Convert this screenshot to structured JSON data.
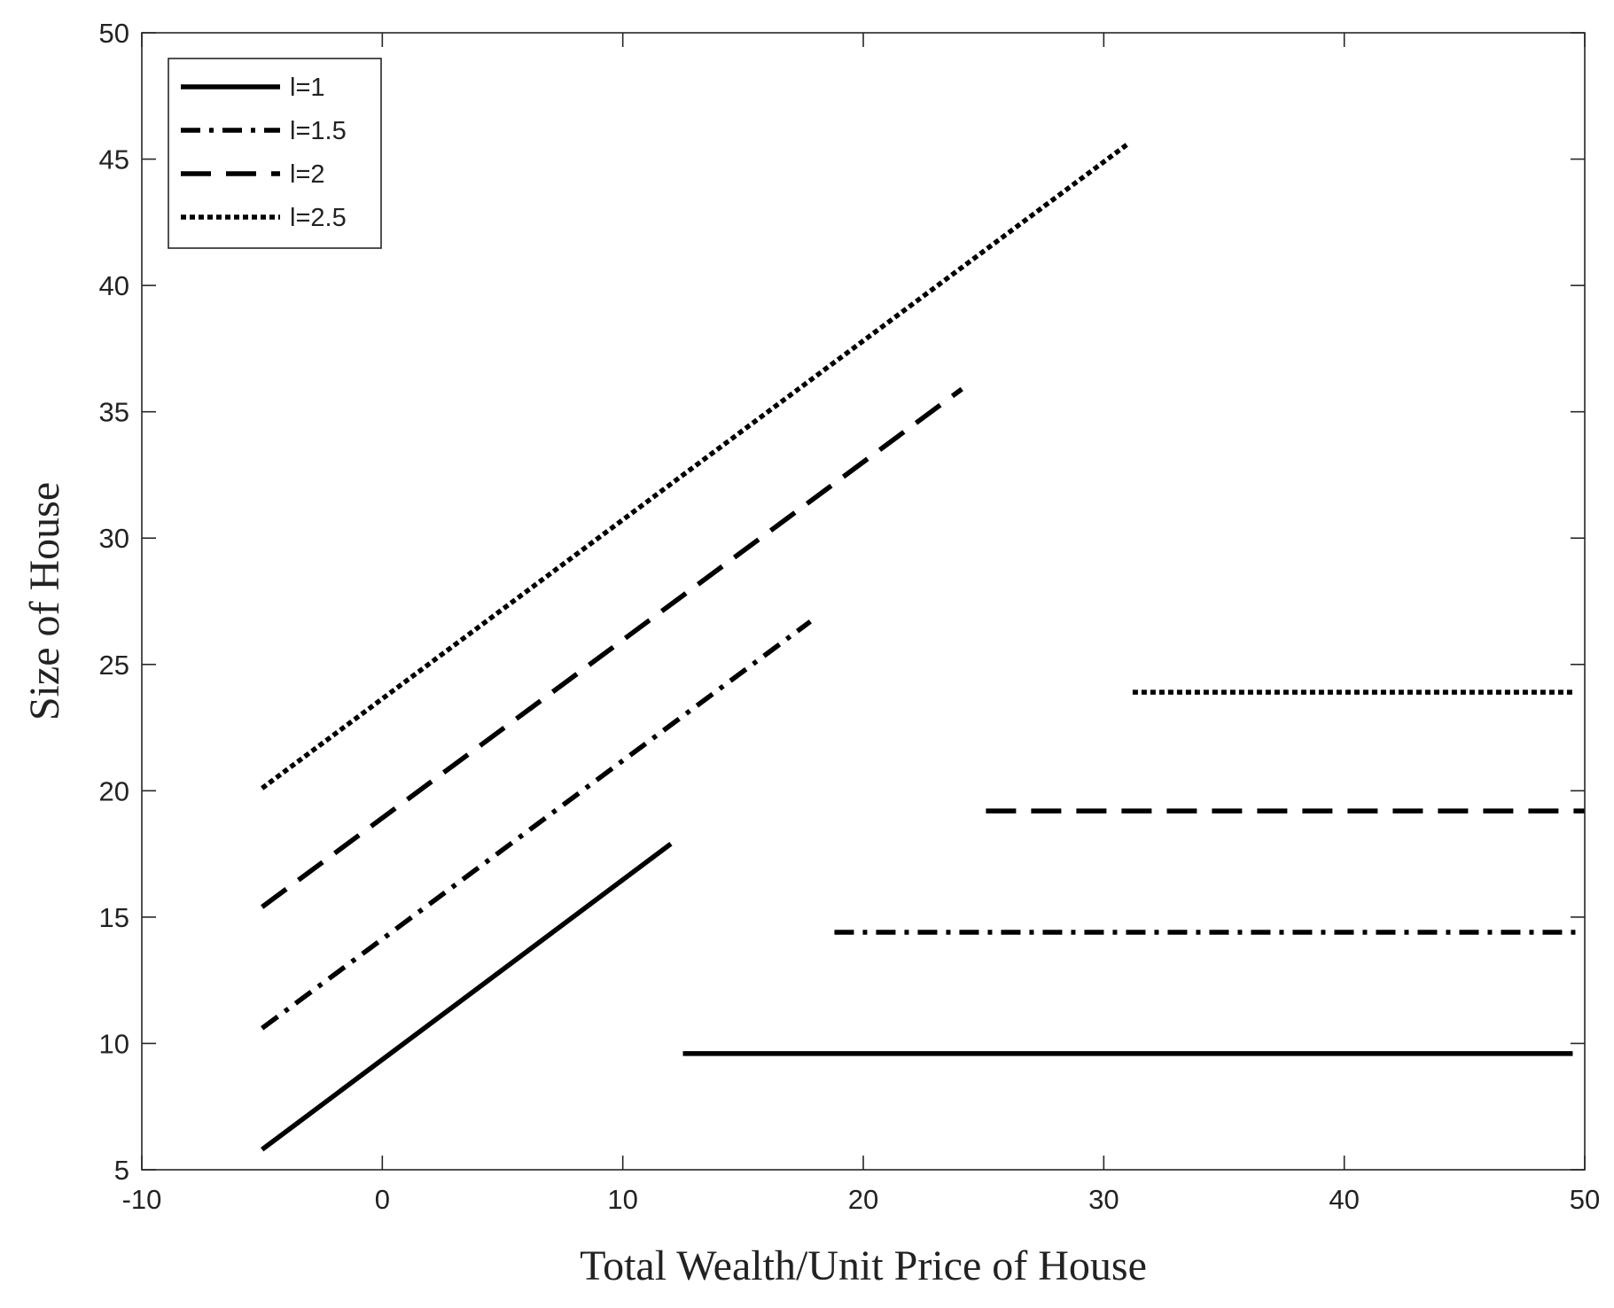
{
  "chart_data": {
    "type": "line",
    "title": "",
    "xlabel": "Total Wealth/Unit Price of House",
    "ylabel": "Size of House",
    "xlim": [
      -10,
      50
    ],
    "ylim": [
      5,
      50
    ],
    "xticks": [
      -10,
      0,
      10,
      20,
      30,
      40,
      50
    ],
    "yticks": [
      5,
      10,
      15,
      20,
      25,
      30,
      35,
      40,
      45,
      50
    ],
    "grid": false,
    "legend_position": "top-left",
    "series": [
      {
        "name": "l=1",
        "style": "solid",
        "segments": [
          [
            [
              -5,
              5.8
            ],
            [
              12,
              17.9
            ]
          ],
          [
            [
              12.5,
              9.6
            ],
            [
              49.5,
              9.6
            ]
          ]
        ]
      },
      {
        "name": "l=1.5",
        "style": "dashdot",
        "segments": [
          [
            [
              -5,
              10.6
            ],
            [
              17.8,
              26.7
            ]
          ],
          [
            [
              18.8,
              14.4
            ],
            [
              49.8,
              14.4
            ]
          ]
        ]
      },
      {
        "name": "l=2",
        "style": "dashed",
        "segments": [
          [
            [
              -5,
              15.4
            ],
            [
              24.1,
              35.9
            ]
          ],
          [
            [
              25.1,
              19.2
            ],
            [
              50,
              19.2
            ]
          ]
        ]
      },
      {
        "name": "l=2.5",
        "style": "dotted",
        "segments": [
          [
            [
              -5,
              20.1
            ],
            [
              31,
              45.6
            ]
          ],
          [
            [
              31.2,
              23.9
            ],
            [
              49.6,
              23.9
            ]
          ]
        ]
      }
    ]
  }
}
